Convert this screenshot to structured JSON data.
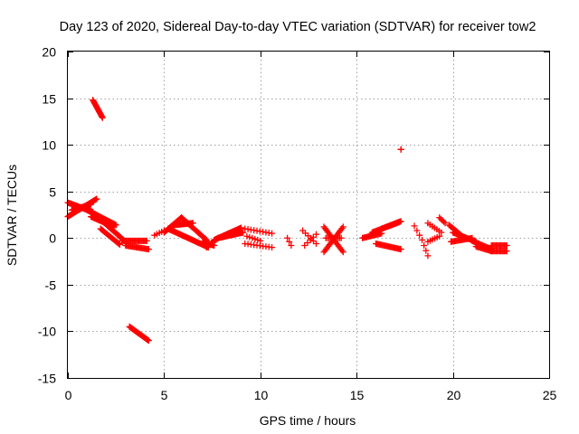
{
  "chart_data": {
    "type": "scatter",
    "title": "Day 123 of 2020, Sidereal Day-to-day VTEC variation (SDTVAR) for receiver tow2",
    "xlabel": "GPS time / hours",
    "ylabel": "SDTVAR / TECUs",
    "xlim": [
      0,
      25
    ],
    "ylim": [
      -15,
      20
    ],
    "xticks": [
      "0",
      "5",
      "10",
      "15",
      "20",
      "25"
    ],
    "yticks": [
      "-15",
      "-10",
      "-5",
      "0",
      "5",
      "10",
      "15",
      "20"
    ],
    "grid": true,
    "marker": "plus",
    "series_color": "#ff0000",
    "segments": [
      {
        "x_start": 0.0,
        "x_end": 1.5,
        "y_start": 2.3,
        "y_end": 4.2,
        "step": 0.05
      },
      {
        "x_start": 0.0,
        "x_end": 1.3,
        "y_start": 3.8,
        "y_end": 2.8,
        "step": 0.05
      },
      {
        "x_start": 0.2,
        "x_end": 1.2,
        "y_start": 3.0,
        "y_end": 3.6,
        "step": 0.05
      },
      {
        "x_start": 1.3,
        "x_end": 1.8,
        "y_start": 14.8,
        "y_end": 12.9,
        "step": 0.03
      },
      {
        "x_start": 1.0,
        "x_end": 2.5,
        "y_start": 3.0,
        "y_end": 1.4,
        "step": 0.05
      },
      {
        "x_start": 1.2,
        "x_end": 2.4,
        "y_start": 2.3,
        "y_end": 1.2,
        "step": 0.05
      },
      {
        "x_start": 1.8,
        "x_end": 3.0,
        "y_start": 1.8,
        "y_end": -0.4,
        "step": 0.05
      },
      {
        "x_start": 1.7,
        "x_end": 2.7,
        "y_start": 1.0,
        "y_end": -0.7,
        "step": 0.05
      },
      {
        "x_start": 2.8,
        "x_end": 4.1,
        "y_start": -0.3,
        "y_end": -0.3,
        "step": 0.06
      },
      {
        "x_start": 3.0,
        "x_end": 4.2,
        "y_start": -0.8,
        "y_end": -1.2,
        "step": 0.06
      },
      {
        "x_start": 3.2,
        "x_end": 4.2,
        "y_start": -9.5,
        "y_end": -11.0,
        "step": 0.04
      },
      {
        "x_start": 4.5,
        "x_end": 5.0,
        "y_start": 0.3,
        "y_end": 0.8,
        "step": 0.12
      },
      {
        "x_start": 5.0,
        "x_end": 5.9,
        "y_start": 0.6,
        "y_end": 2.2,
        "step": 0.05
      },
      {
        "x_start": 5.9,
        "x_end": 7.2,
        "y_start": 2.2,
        "y_end": -0.2,
        "step": 0.05
      },
      {
        "x_start": 5.2,
        "x_end": 7.3,
        "y_start": 1.0,
        "y_end": -1.0,
        "step": 0.05
      },
      {
        "x_start": 5.5,
        "x_end": 6.5,
        "y_start": 1.4,
        "y_end": 1.6,
        "step": 0.05
      },
      {
        "x_start": 7.2,
        "x_end": 7.8,
        "y_start": -1.0,
        "y_end": 0.0,
        "step": 0.05
      },
      {
        "x_start": 7.0,
        "x_end": 7.6,
        "y_start": -0.4,
        "y_end": -0.8,
        "step": 0.05
      },
      {
        "x_start": 7.6,
        "x_end": 9.0,
        "y_start": -0.2,
        "y_end": 1.1,
        "step": 0.05
      },
      {
        "x_start": 7.8,
        "x_end": 9.1,
        "y_start": 0.0,
        "y_end": 0.6,
        "step": 0.05
      },
      {
        "x_start": 9.2,
        "x_end": 10.6,
        "y_start": 1.0,
        "y_end": 0.5,
        "step": 0.15
      },
      {
        "x_start": 9.2,
        "x_end": 10.6,
        "y_start": -0.6,
        "y_end": -1.0,
        "step": 0.15
      },
      {
        "x_start": 9.3,
        "x_end": 10.0,
        "y_start": 0.2,
        "y_end": -0.3,
        "step": 0.15
      },
      {
        "x_start": 11.4,
        "x_end": 11.6,
        "y_start": 0.0,
        "y_end": -0.8,
        "step": 0.1
      },
      {
        "x_start": 12.2,
        "x_end": 12.9,
        "y_start": 0.8,
        "y_end": -0.6,
        "step": 0.15
      },
      {
        "x_start": 12.3,
        "x_end": 12.9,
        "y_start": -0.8,
        "y_end": 0.4,
        "step": 0.15
      },
      {
        "x_start": 13.3,
        "x_end": 14.3,
        "y_start": 1.2,
        "y_end": -1.5,
        "step": 0.06
      },
      {
        "x_start": 13.3,
        "x_end": 14.3,
        "y_start": -1.5,
        "y_end": 1.2,
        "step": 0.06
      },
      {
        "x_start": 13.4,
        "x_end": 14.2,
        "y_start": 0.0,
        "y_end": 0.0,
        "step": 0.08
      },
      {
        "x_start": 15.3,
        "x_end": 16.3,
        "y_start": 0.0,
        "y_end": 0.5,
        "step": 0.06
      },
      {
        "x_start": 16.3,
        "x_end": 17.3,
        "y_start": 1.0,
        "y_end": 1.8,
        "step": 0.06
      },
      {
        "x_start": 15.8,
        "x_end": 17.2,
        "y_start": 0.6,
        "y_end": 1.7,
        "step": 0.06
      },
      {
        "x_start": 16.0,
        "x_end": 17.3,
        "y_start": -0.6,
        "y_end": -1.2,
        "step": 0.06
      },
      {
        "x_start": 17.3,
        "x_end": 17.3,
        "y_start": 9.5,
        "y_end": 9.5,
        "step": 1
      },
      {
        "x_start": 18.0,
        "x_end": 18.4,
        "y_start": 1.3,
        "y_end": -0.2,
        "step": 0.12
      },
      {
        "x_start": 18.5,
        "x_end": 18.7,
        "y_start": -0.8,
        "y_end": -1.9,
        "step": 0.1
      },
      {
        "x_start": 18.7,
        "x_end": 19.4,
        "y_start": 1.6,
        "y_end": 0.6,
        "step": 0.12
      },
      {
        "x_start": 18.7,
        "x_end": 19.3,
        "y_start": -0.4,
        "y_end": 0.2,
        "step": 0.12
      },
      {
        "x_start": 19.3,
        "x_end": 19.6,
        "y_start": 2.2,
        "y_end": 1.6,
        "step": 0.08
      },
      {
        "x_start": 19.8,
        "x_end": 20.6,
        "y_start": 1.4,
        "y_end": 0.0,
        "step": 0.06
      },
      {
        "x_start": 20.0,
        "x_end": 21.2,
        "y_start": 0.6,
        "y_end": -0.4,
        "step": 0.06
      },
      {
        "x_start": 19.9,
        "x_end": 21.0,
        "y_start": -0.4,
        "y_end": 0.0,
        "step": 0.06
      },
      {
        "x_start": 21.0,
        "x_end": 22.0,
        "y_start": -0.3,
        "y_end": -1.2,
        "step": 0.06
      },
      {
        "x_start": 21.2,
        "x_end": 22.0,
        "y_start": -0.9,
        "y_end": -1.4,
        "step": 0.06
      },
      {
        "x_start": 22.0,
        "x_end": 22.8,
        "y_start": -0.8,
        "y_end": -0.8,
        "step": 0.06
      },
      {
        "x_start": 22.0,
        "x_end": 22.8,
        "y_start": -1.4,
        "y_end": -1.4,
        "step": 0.06
      }
    ]
  }
}
